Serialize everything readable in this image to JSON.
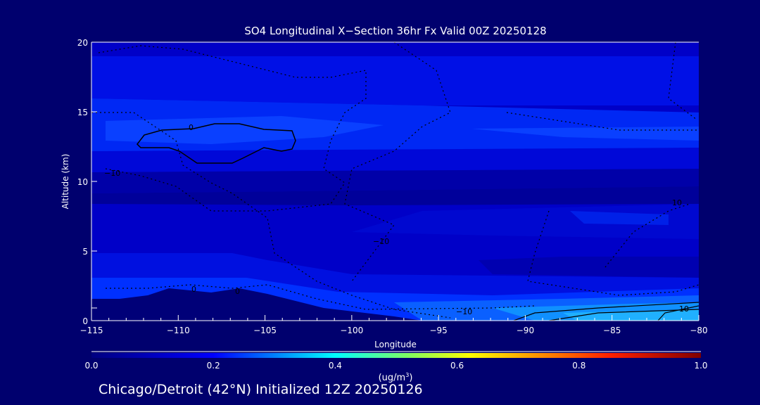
{
  "chart_data": {
    "type": "heatmap",
    "subtype": "filled contour cross-section",
    "title": "SO4 Longitudinal X−Section 36hr  Fx Valid 00Z 20250128",
    "xlabel": "Longitude",
    "ylabel": "Altitude (km)",
    "xlim": [
      -115,
      -80
    ],
    "ylim": [
      0,
      20
    ],
    "xticks": [
      "−115",
      "−110",
      "−105",
      "−100",
      "−95",
      "−90",
      "−85",
      "−80"
    ],
    "xtick_values": [
      -115,
      -110,
      -105,
      -100,
      -95,
      -90,
      -85,
      -80
    ],
    "yticks": [
      "0",
      "5",
      "10",
      "15",
      "20"
    ],
    "ytick_values": [
      0,
      5,
      10,
      15,
      20
    ],
    "colorbar": {
      "range": [
        0.0,
        1.0
      ],
      "ticks": [
        "0.0",
        "0.2",
        "0.4",
        "0.6",
        "0.8",
        "1.0"
      ],
      "unit_label": "(ug/m",
      "unit_sup": "3",
      "unit_close": ")",
      "colors": [
        "#000080",
        "#0000ff",
        "#00ffff",
        "#ffff00",
        "#ff0000",
        "#800000"
      ]
    },
    "contour_labels": [
      "0",
      "−10",
      "0",
      "0",
      "−10",
      "10",
      "−10",
      "10"
    ],
    "approx_field": "Concentrations mostly 0.05–0.2 ug/m3; maximum ~0.3 near surface at −90 to −80"
  },
  "footer": "Chicago/Detroit (42°N) Initialized 12Z 20250126"
}
